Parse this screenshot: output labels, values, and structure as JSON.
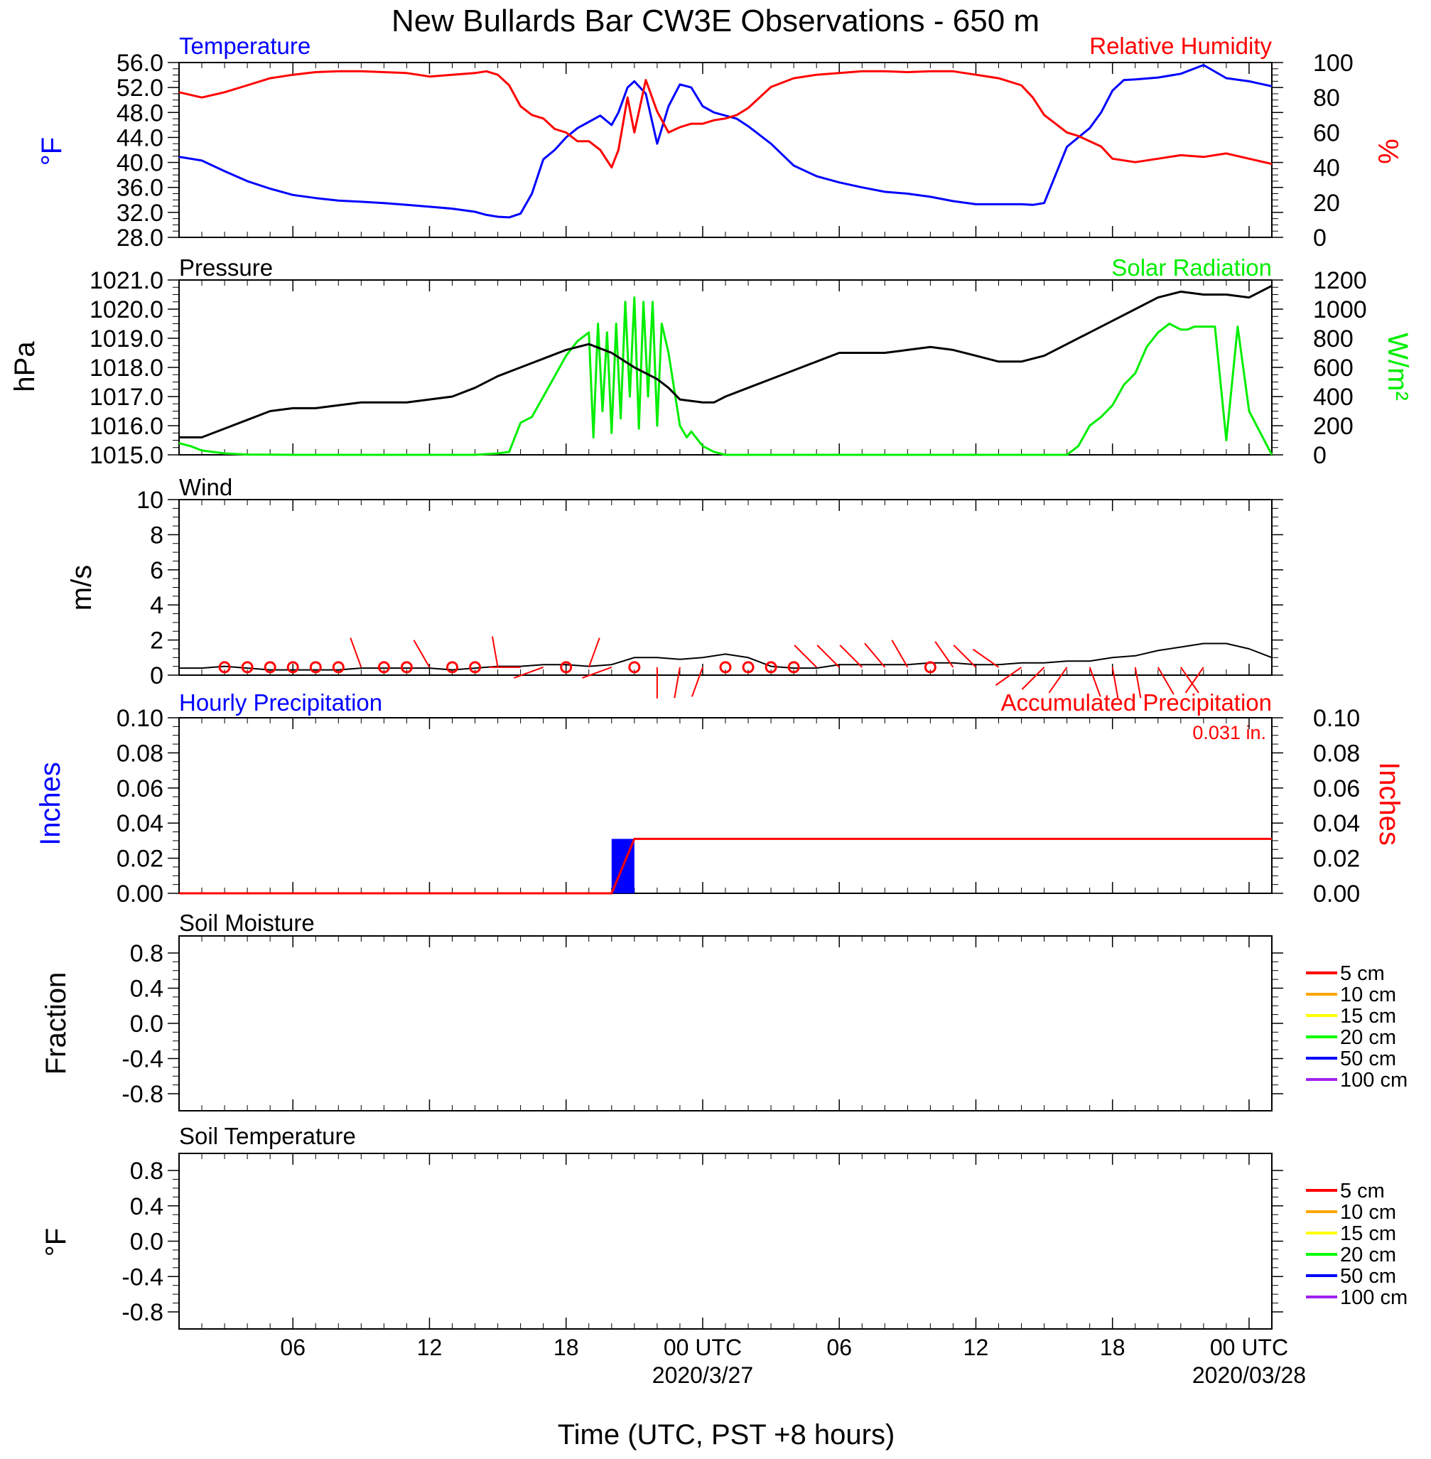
{
  "title": "New Bullards Bar CW3E Observations - 650 m",
  "x_axis": {
    "label": "Time (UTC, PST +8 hours)",
    "ticks": [
      "06",
      "12",
      "18",
      "00 UTC",
      "06",
      "12",
      "18",
      "00 UTC"
    ],
    "dates": [
      "2020/3/27",
      "2020/03/28"
    ]
  },
  "colors": {
    "temperature": "#0000ff",
    "humidity": "#ff0000",
    "pressure": "#000000",
    "solar": "#00ee00",
    "wind_speed": "#000000",
    "wind_barb": "#ff0000",
    "hourly_precip": "#0000ff",
    "accum_precip": "#ff0000"
  },
  "panels": {
    "temp_rh": {
      "left_title": "Temperature",
      "right_title": "Relative Humidity",
      "left_unit": "°F",
      "right_unit": "%",
      "left_ticks": [
        "56.0",
        "52.0",
        "48.0",
        "44.0",
        "40.0",
        "36.0",
        "32.0",
        "28.0"
      ],
      "right_ticks": [
        "100",
        "80",
        "60",
        "40",
        "20",
        "0"
      ]
    },
    "pressure_solar": {
      "left_title": "Pressure",
      "right_title": "Solar Radiation",
      "left_unit": "hPa",
      "right_unit": "W/m²",
      "left_ticks": [
        "1021.0",
        "1020.0",
        "1019.0",
        "1018.0",
        "1017.0",
        "1016.0",
        "1015.0"
      ],
      "right_ticks": [
        "1200",
        "1000",
        "800",
        "600",
        "400",
        "200",
        "0"
      ]
    },
    "wind": {
      "left_title": "Wind",
      "left_unit": "m/s",
      "left_ticks": [
        "10",
        "8",
        "6",
        "4",
        "2",
        "0"
      ]
    },
    "precip": {
      "left_title": "Hourly Precipitation",
      "right_title": "Accumulated Precipitation",
      "total_label": "0.031 in.",
      "left_unit": "Inches",
      "right_unit": "Inches",
      "left_ticks": [
        "0.10",
        "0.08",
        "0.06",
        "0.04",
        "0.02",
        "0.00"
      ],
      "right_ticks": [
        "0.10",
        "0.08",
        "0.06",
        "0.04",
        "0.02",
        "0.00"
      ]
    },
    "soil_moisture": {
      "left_title": "Soil Moisture",
      "left_unit": "Fraction",
      "left_ticks": [
        "0.8",
        "0.4",
        "0.0",
        "-0.4",
        "-0.8"
      ]
    },
    "soil_temperature": {
      "left_title": "Soil Temperature",
      "left_unit": "°F",
      "left_ticks": [
        "0.8",
        "0.4",
        "0.0",
        "-0.4",
        "-0.8"
      ]
    }
  },
  "legend": {
    "depths": [
      "5 cm",
      "10 cm",
      "15 cm",
      "20 cm",
      "50 cm",
      "100 cm"
    ],
    "colors": [
      "#ff0000",
      "#ffa500",
      "#ffff00",
      "#00ff00",
      "#0000ff",
      "#a020f0"
    ]
  },
  "chart_data": [
    {
      "type": "line",
      "title": "Temperature",
      "ylabel": "°F",
      "ylim": [
        28,
        56
      ],
      "x_unit": "hours since 2020-03-26 01:00 UTC",
      "xlim": [
        0,
        48
      ],
      "series": [
        {
          "name": "Temperature",
          "x": [
            0,
            1,
            2,
            3,
            4,
            5,
            6,
            7,
            8,
            9,
            10,
            11,
            12,
            13,
            13.5,
            14,
            14.5,
            15,
            15.5,
            16,
            16.5,
            17,
            17.5,
            18,
            18.5,
            19,
            19.3,
            19.7,
            20,
            20.5,
            21,
            21.5,
            22,
            22.5,
            23,
            23.5,
            24,
            24.5,
            25,
            26,
            27,
            28,
            29,
            30,
            31,
            32,
            33,
            34,
            35,
            36,
            37,
            37.5,
            38,
            38.5,
            39,
            39.5,
            40,
            40.5,
            41,
            41.5,
            42,
            43,
            44,
            45,
            46,
            47,
            48
          ],
          "y": [
            40.9,
            40.3,
            38.6,
            37,
            35.8,
            34.8,
            34.3,
            33.9,
            33.7,
            33.5,
            33.2,
            32.9,
            32.6,
            32.1,
            31.6,
            31.3,
            31.2,
            31.8,
            35,
            40.5,
            42,
            44,
            45.5,
            46.5,
            47.5,
            46,
            48,
            52,
            53,
            51,
            43,
            49,
            52.5,
            52,
            49,
            48,
            47.5,
            47,
            45.8,
            43,
            39.5,
            37.8,
            36.8,
            36,
            35.3,
            35,
            34.5,
            33.8,
            33.3,
            33.3,
            33.3,
            33.2,
            33.5,
            38,
            42.5,
            44,
            45.5,
            48,
            51.5,
            53.2,
            53.3,
            53.6,
            54.2,
            55.6,
            53.5,
            53,
            52.2
          ]
        },
        {
          "name": "Relative Humidity",
          "ylabel": "%",
          "ylim": [
            0,
            100
          ],
          "x": [
            0,
            1,
            2,
            3,
            4,
            5,
            6,
            7,
            8,
            9,
            10,
            10.5,
            11,
            12,
            13,
            13.5,
            14,
            14.5,
            15,
            15.5,
            16,
            16.5,
            17,
            17.5,
            18,
            18.5,
            19,
            19.3,
            19.7,
            20,
            20.5,
            21,
            21.5,
            22,
            22.5,
            23,
            23.5,
            24,
            24.5,
            25,
            26,
            27,
            28,
            29,
            30,
            31,
            32,
            33,
            34,
            35,
            36,
            37,
            37.5,
            38,
            38.5,
            39,
            39.5,
            40,
            40.5,
            41,
            42,
            43,
            44,
            45,
            46,
            47,
            48
          ],
          "y": [
            83,
            80,
            83,
            87,
            91,
            93,
            94.5,
            95,
            95,
            94.5,
            94,
            93,
            92,
            93,
            94,
            95,
            93,
            87,
            75,
            70,
            68,
            62,
            60,
            55,
            55,
            50,
            40,
            50,
            80,
            60,
            90,
            72,
            60,
            63,
            65,
            65,
            67,
            68,
            70,
            74,
            86,
            91,
            93,
            94,
            95,
            95,
            94.5,
            95,
            95,
            93,
            91,
            87,
            80,
            70,
            65,
            60,
            58,
            55,
            52,
            45,
            43,
            45,
            47,
            46,
            48,
            45,
            42
          ]
        }
      ]
    },
    {
      "type": "line",
      "title": "Pressure",
      "ylabel": "hPa",
      "ylim": [
        1015,
        1021
      ],
      "x_unit": "hours since 2020-03-26 01:00 UTC",
      "xlim": [
        0,
        48
      ],
      "series": [
        {
          "name": "Pressure",
          "x": [
            0,
            1,
            2,
            3,
            4,
            5,
            6,
            7,
            8,
            9,
            10,
            11,
            12,
            13,
            14,
            15,
            16,
            17,
            18,
            19,
            20,
            20.5,
            21,
            21.5,
            22,
            23,
            23.5,
            24,
            25,
            26,
            27,
            28,
            29,
            30,
            31,
            32,
            33,
            34,
            35,
            36,
            37,
            38,
            39,
            40,
            41,
            42,
            43,
            44,
            45,
            46,
            47,
            48
          ],
          "y": [
            1015.6,
            1015.6,
            1015.9,
            1016.2,
            1016.5,
            1016.6,
            1016.6,
            1016.7,
            1016.8,
            1016.8,
            1016.8,
            1016.9,
            1017.0,
            1017.3,
            1017.7,
            1018.0,
            1018.3,
            1018.6,
            1018.8,
            1018.5,
            1018.0,
            1017.8,
            1017.6,
            1017.3,
            1016.9,
            1016.8,
            1016.8,
            1017.0,
            1017.3,
            1017.6,
            1017.9,
            1018.2,
            1018.5,
            1018.5,
            1018.5,
            1018.6,
            1018.7,
            1018.6,
            1018.4,
            1018.2,
            1018.2,
            1018.4,
            1018.8,
            1019.2,
            1019.6,
            1020.0,
            1020.4,
            1020.6,
            1020.5,
            1020.5,
            1020.4,
            1020.8
          ]
        },
        {
          "name": "Solar Radiation",
          "ylabel": "W/m²",
          "ylim": [
            0,
            1200
          ],
          "x": [
            0,
            0.5,
            1,
            2,
            3,
            5,
            8,
            11,
            13,
            14,
            14.5,
            15,
            15.5,
            16,
            16.5,
            17,
            17.5,
            18,
            18.2,
            18.4,
            18.6,
            18.8,
            19,
            19.2,
            19.4,
            19.6,
            19.8,
            20,
            20.2,
            20.4,
            20.6,
            20.8,
            21,
            21.2,
            21.5,
            22,
            22.3,
            22.5,
            23,
            23.5,
            24,
            24.5,
            25,
            25.5,
            26,
            28,
            30,
            32,
            34,
            36,
            37,
            37.3,
            37.6,
            38,
            38.5,
            39,
            39.5,
            40,
            40.5,
            41,
            41.5,
            42,
            42.5,
            43,
            43.5,
            44,
            44.3,
            44.6,
            45,
            45.5,
            46,
            46.5,
            47,
            47.5,
            48
          ],
          "y": [
            80,
            60,
            30,
            10,
            2,
            0,
            0,
            0,
            0,
            10,
            20,
            220,
            260,
            400,
            540,
            680,
            780,
            840,
            120,
            900,
            300,
            840,
            150,
            900,
            250,
            1050,
            400,
            1080,
            180,
            1050,
            400,
            1050,
            200,
            900,
            700,
            200,
            120,
            160,
            60,
            20,
            0,
            0,
            0,
            0,
            0,
            0,
            0,
            0,
            0,
            0,
            0,
            0,
            0,
            0,
            0,
            0,
            60,
            200,
            260,
            340,
            480,
            560,
            740,
            840,
            900,
            860,
            860,
            880,
            880,
            880,
            100,
            880,
            300,
            150,
            0
          ]
        }
      ]
    },
    {
      "type": "line",
      "title": "Wind",
      "ylabel": "m/s",
      "ylim": [
        0,
        10
      ],
      "x_unit": "hours since 2020-03-26 01:00 UTC",
      "xlim": [
        0,
        48
      ],
      "series": [
        {
          "name": "Wind speed",
          "x": [
            0,
            1,
            2,
            3,
            4,
            5,
            6,
            7,
            8,
            9,
            10,
            11,
            12,
            13,
            14,
            15,
            16,
            17,
            18,
            19,
            20,
            21,
            22,
            23,
            24,
            25,
            26,
            27,
            28,
            29,
            30,
            31,
            32,
            33,
            34,
            35,
            36,
            37,
            38,
            39,
            40,
            41,
            42,
            43,
            44,
            45,
            46,
            47,
            48
          ],
          "y": [
            0.4,
            0.4,
            0.5,
            0.4,
            0.3,
            0.3,
            0.3,
            0.3,
            0.4,
            0.4,
            0.4,
            0.4,
            0.3,
            0.4,
            0.5,
            0.5,
            0.6,
            0.6,
            0.5,
            0.6,
            1.0,
            1.0,
            0.9,
            1.0,
            1.2,
            1.0,
            0.5,
            0.4,
            0.4,
            0.6,
            0.6,
            0.6,
            0.6,
            0.7,
            0.7,
            0.6,
            0.6,
            0.7,
            0.7,
            0.8,
            0.8,
            1.0,
            1.1,
            1.4,
            1.6,
            1.8,
            1.8,
            1.5,
            1.0
          ]
        }
      ],
      "wind_barbs": [
        {
          "x": 2,
          "calm": true
        },
        {
          "x": 3,
          "calm": true
        },
        {
          "x": 4,
          "calm": true
        },
        {
          "x": 5,
          "calm": true
        },
        {
          "x": 6,
          "calm": true
        },
        {
          "x": 7,
          "calm": true
        },
        {
          "x": 8,
          "dir_deg": 340
        },
        {
          "x": 9,
          "calm": true
        },
        {
          "x": 10,
          "calm": true
        },
        {
          "x": 11,
          "dir_deg": 330
        },
        {
          "x": 12,
          "calm": true
        },
        {
          "x": 13,
          "calm": true
        },
        {
          "x": 14,
          "dir_deg": 350
        },
        {
          "x": 15,
          "dir_deg": 270
        },
        {
          "x": 16,
          "dir_deg": 250
        },
        {
          "x": 17,
          "calm": true
        },
        {
          "x": 18,
          "dir_deg": 20
        },
        {
          "x": 19,
          "dir_deg": 250
        },
        {
          "x": 20,
          "calm": true
        },
        {
          "x": 21,
          "dir_deg": 180
        },
        {
          "x": 22,
          "dir_deg": 190
        },
        {
          "x": 23,
          "dir_deg": 200
        },
        {
          "x": 24,
          "calm": true
        },
        {
          "x": 25,
          "calm": true
        },
        {
          "x": 26,
          "calm": true
        },
        {
          "x": 27,
          "calm": true
        },
        {
          "x": 28,
          "dir_deg": 315
        },
        {
          "x": 29,
          "dir_deg": 315
        },
        {
          "x": 30,
          "dir_deg": 315
        },
        {
          "x": 31,
          "dir_deg": 320
        },
        {
          "x": 32,
          "dir_deg": 330
        },
        {
          "x": 33,
          "calm": true
        },
        {
          "x": 34,
          "dir_deg": 325
        },
        {
          "x": 35,
          "dir_deg": 315
        },
        {
          "x": 36,
          "dir_deg": 305
        },
        {
          "x": 37,
          "dir_deg": 235
        },
        {
          "x": 38,
          "dir_deg": 225
        },
        {
          "x": 39,
          "dir_deg": 215
        },
        {
          "x": 40,
          "dir_deg": 160
        },
        {
          "x": 41,
          "dir_deg": 170
        },
        {
          "x": 42,
          "dir_deg": 170
        },
        {
          "x": 43,
          "dir_deg": 150
        },
        {
          "x": 44,
          "dir_deg": 145
        },
        {
          "x": 45,
          "dir_deg": 215
        }
      ]
    },
    {
      "type": "bar",
      "title": "Hourly Precipitation",
      "ylabel": "Inches",
      "ylim": [
        0,
        0.1
      ],
      "x_unit": "hours since 2020-03-26 01:00 UTC",
      "xlim": [
        0,
        48
      ],
      "series": [
        {
          "name": "Hourly Precipitation",
          "x": [
            19.5
          ],
          "values": [
            0.031
          ]
        },
        {
          "name": "Accumulated Precipitation",
          "type": "line",
          "x": [
            0,
            19,
            20,
            48
          ],
          "y": [
            0,
            0,
            0.031,
            0.031
          ]
        }
      ]
    },
    {
      "type": "line",
      "title": "Soil Moisture",
      "ylabel": "Fraction",
      "ylim": [
        -1,
        1
      ],
      "series": []
    },
    {
      "type": "line",
      "title": "Soil Temperature",
      "ylabel": "°F",
      "ylim": [
        -1,
        1
      ],
      "series": []
    }
  ]
}
